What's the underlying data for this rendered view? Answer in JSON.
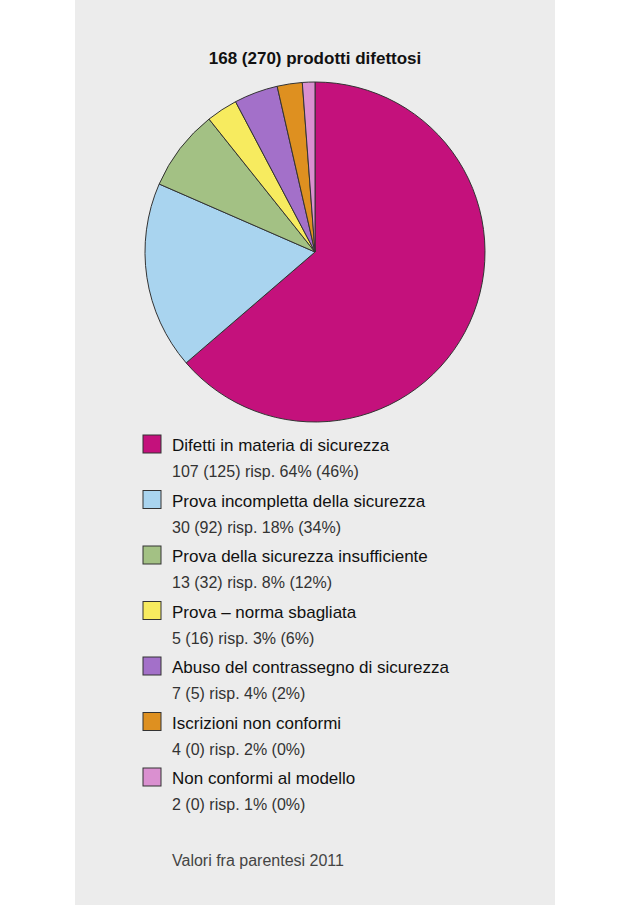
{
  "chart_data": {
    "type": "pie",
    "title": "168 (270) prodotti difettosi",
    "categories": [
      "Difetti in materia di sicurezza",
      "Prova incompletta della sicurezza",
      "Prova della sicurezza insufficiente",
      "Prova – norma sbagliata",
      "Abuso del contrassegno di sicurezza",
      "Iscrizioni non conformi",
      "Non conformi al modello"
    ],
    "values": [
      107,
      30,
      13,
      5,
      7,
      4,
      2
    ],
    "value_labels": [
      "107 (125) risp. 64% (46%)",
      "30 (92) risp. 18% (34%)",
      "13 (32) risp. 8% (12%)",
      "5 (16) risp. 3% (6%)",
      "7 (5) risp. 4% (2%)",
      "4 (0) risp. 2% (0%)",
      "2 (0) risp. 1% (0%)"
    ],
    "colors": [
      "#c4117c",
      "#a9d4ef",
      "#a3c184",
      "#f7eb5f",
      "#a370c9",
      "#de9020",
      "#da90d0"
    ],
    "legend": "bottom",
    "annotation": "Valori fra parentesi 2011"
  }
}
